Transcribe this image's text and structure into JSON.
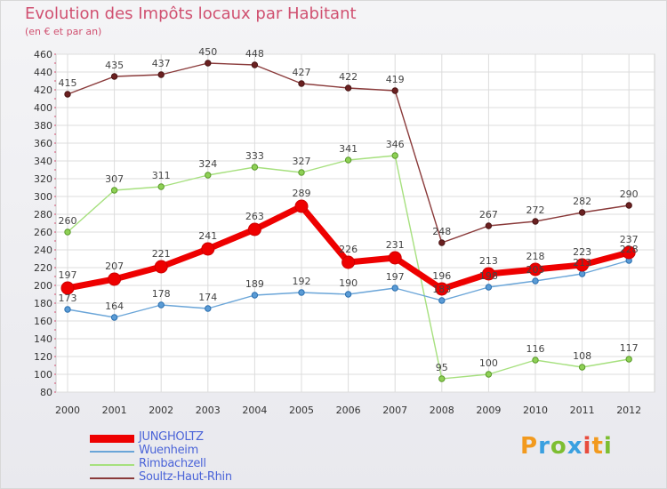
{
  "title": "Evolution des Impôts locaux par Habitant",
  "subtitle": "(en € et par an)",
  "brand": {
    "text": "Proxiti",
    "colors": [
      "#f29a1e",
      "#3aa0e0",
      "#7dbe31",
      "#3aa0e0",
      "#e84c3d",
      "#f29a1e",
      "#7dbe31"
    ]
  },
  "chart_data": {
    "type": "line",
    "x": [
      "2000",
      "2001",
      "2002",
      "2003",
      "2004",
      "2005",
      "2006",
      "2007",
      "2008",
      "2009",
      "2010",
      "2011",
      "2012"
    ],
    "ylim": [
      80,
      460
    ],
    "yticks": [
      80,
      100,
      120,
      140,
      160,
      180,
      200,
      220,
      240,
      260,
      280,
      300,
      320,
      340,
      360,
      380,
      400,
      420,
      440,
      460
    ],
    "grid": true,
    "legend": "bottom-left",
    "series": [
      {
        "name": "JUNGHOLTZ",
        "color": "#ee0000",
        "values": [
          197,
          207,
          221,
          241,
          263,
          289,
          226,
          231,
          196,
          213,
          218,
          223,
          237
        ]
      },
      {
        "name": "Wuenheim",
        "color": "#6aa5d8",
        "values": [
          173,
          164,
          178,
          174,
          189,
          192,
          190,
          197,
          183,
          198,
          205,
          213,
          228
        ]
      },
      {
        "name": "Rimbachzell",
        "color": "#a6e07e",
        "values": [
          260,
          307,
          311,
          324,
          333,
          327,
          341,
          346,
          95,
          100,
          116,
          108,
          117
        ]
      },
      {
        "name": "Soultz-Haut-Rhin",
        "color": "#8a3a3a",
        "values": [
          415,
          435,
          437,
          450,
          448,
          427,
          422,
          419,
          248,
          267,
          272,
          282,
          290
        ]
      }
    ],
    "labels": [
      [
        "197",
        "207",
        "221",
        "241",
        "263",
        "289",
        "226",
        "231",
        "196",
        "213",
        "218",
        "223",
        "237"
      ],
      [
        "173",
        "164",
        "178",
        "174",
        "189",
        "192",
        "190",
        "197",
        "183",
        "198",
        "205",
        "213",
        "228"
      ],
      [
        "260",
        "307",
        "311",
        "324",
        "333",
        "327",
        "341",
        "346",
        "95",
        "100",
        "116",
        "108",
        "117"
      ],
      [
        "415",
        "435",
        "437",
        "450",
        "448",
        "427",
        "422",
        "419",
        "248",
        "267",
        "272",
        "282",
        "290"
      ]
    ]
  }
}
